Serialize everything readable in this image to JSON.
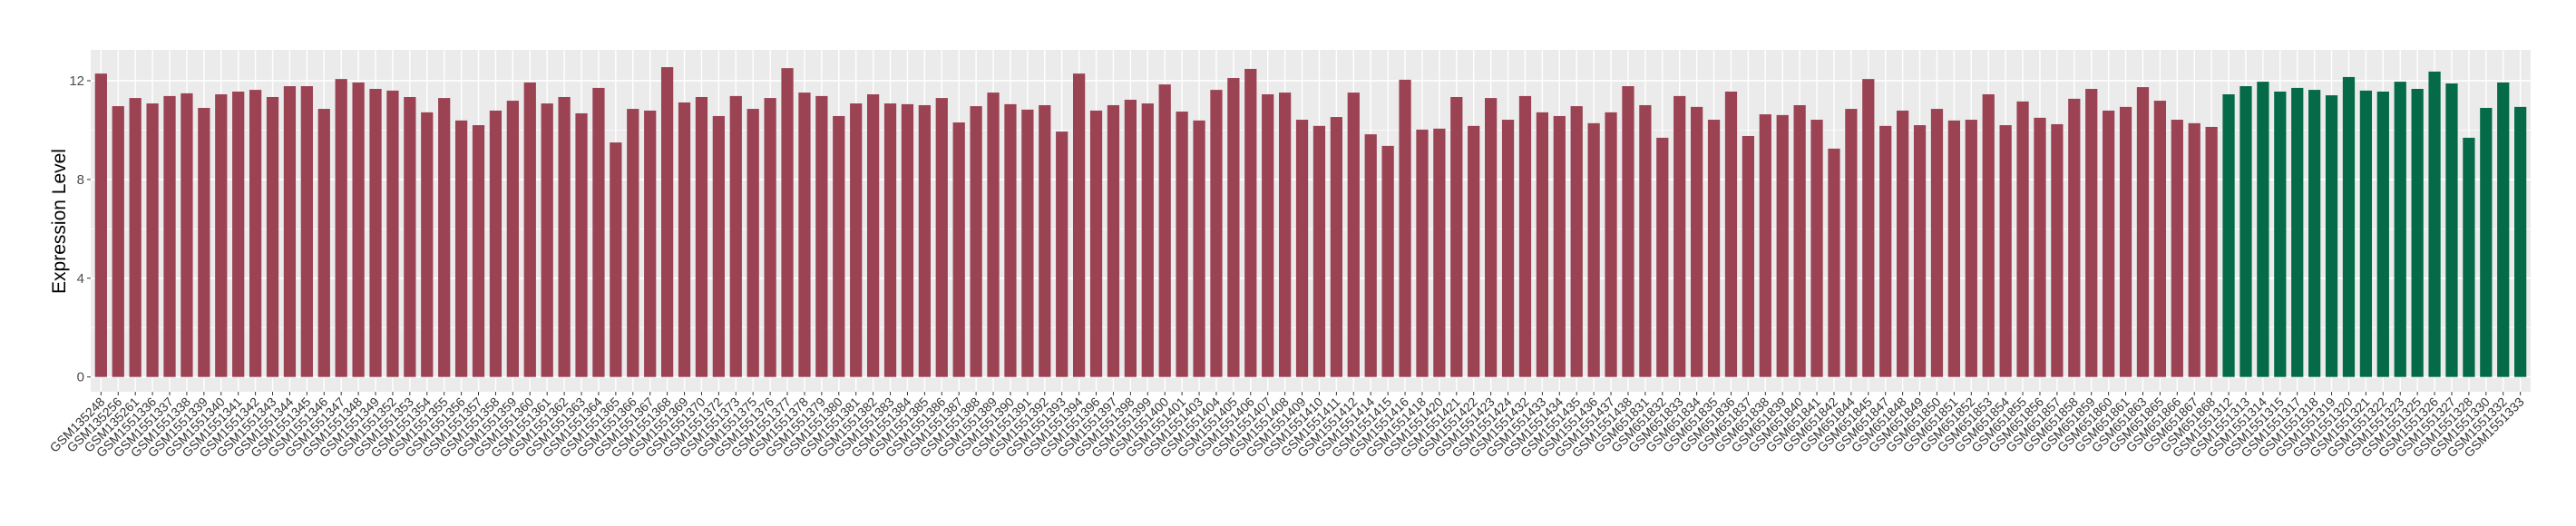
{
  "chart_data": {
    "type": "bar",
    "title": "",
    "xlabel": "",
    "ylabel": "Expression Level",
    "ylim": [
      -0.6,
      13.25
    ],
    "yticks": [
      0,
      4,
      8,
      12
    ],
    "grid": true,
    "panel_background": "#EBEBEB",
    "series": [
      {
        "color": "#9B4253",
        "categories": [
          "GSM135248",
          "GSM135256",
          "GSM135261",
          "GSM1551336",
          "GSM1551337",
          "GSM1551338",
          "GSM1551339",
          "GSM1551340",
          "GSM1551341",
          "GSM1551342",
          "GSM1551343",
          "GSM1551344",
          "GSM1551345",
          "GSM1551346",
          "GSM1551347",
          "GSM1551348",
          "GSM1551349",
          "GSM1551352",
          "GSM1551353",
          "GSM1551354",
          "GSM1551355",
          "GSM1551356",
          "GSM1551357",
          "GSM1551358",
          "GSM1551359",
          "GSM1551360",
          "GSM1551361",
          "GSM1551362",
          "GSM1551363",
          "GSM1551364",
          "GSM1551365",
          "GSM1551366",
          "GSM1551367",
          "GSM1551368",
          "GSM1551369",
          "GSM1551370",
          "GSM1551372",
          "GSM1551373",
          "GSM1551375",
          "GSM1551376",
          "GSM1551377",
          "GSM1551378",
          "GSM1551379",
          "GSM1551380",
          "GSM1551381",
          "GSM1551382",
          "GSM1551383",
          "GSM1551384",
          "GSM1551385",
          "GSM1551386",
          "GSM1551387",
          "GSM1551388",
          "GSM1551389",
          "GSM1551390",
          "GSM1551391",
          "GSM1551392",
          "GSM1551393",
          "GSM1551394",
          "GSM1551396",
          "GSM1551397",
          "GSM1551398",
          "GSM1551399",
          "GSM1551400",
          "GSM1551401",
          "GSM1551403",
          "GSM1551404",
          "GSM1551405",
          "GSM1551406",
          "GSM1551407",
          "GSM1551408",
          "GSM1551409",
          "GSM1551410",
          "GSM1551411",
          "GSM1551412",
          "GSM1551414",
          "GSM1551415",
          "GSM1551416",
          "GSM1551418",
          "GSM1551420",
          "GSM1551421",
          "GSM1551422",
          "GSM1551423",
          "GSM1551424",
          "GSM1551432",
          "GSM1551433",
          "GSM1551434",
          "GSM1551435",
          "GSM1551436",
          "GSM1551437",
          "GSM1551438",
          "GSM651831",
          "GSM651832",
          "GSM651833",
          "GSM651834",
          "GSM651835",
          "GSM651836",
          "GSM651837",
          "GSM651838",
          "GSM651839",
          "GSM651840",
          "GSM651841",
          "GSM651842",
          "GSM651844",
          "GSM651845",
          "GSM651847",
          "GSM651848",
          "GSM651849",
          "GSM651850",
          "GSM651851",
          "GSM651852",
          "GSM651853",
          "GSM651854",
          "GSM651855",
          "GSM651856",
          "GSM651857",
          "GSM651858",
          "GSM651859",
          "GSM651860",
          "GSM651861",
          "GSM651863",
          "GSM651865",
          "GSM651866",
          "GSM651867",
          "GSM651868"
        ],
        "values": [
          12.29,
          10.97,
          11.3,
          11.08,
          11.38,
          11.49,
          10.9,
          11.45,
          11.56,
          11.63,
          11.34,
          11.78,
          11.78,
          10.86,
          12.07,
          11.93,
          11.67,
          11.6,
          11.34,
          10.72,
          11.3,
          10.39,
          10.2,
          10.79,
          11.19,
          11.93,
          11.08,
          11.34,
          10.68,
          11.71,
          9.5,
          10.86,
          10.79,
          12.55,
          11.12,
          11.34,
          10.57,
          11.38,
          10.86,
          11.3,
          12.51,
          11.52,
          11.38,
          10.57,
          11.08,
          11.45,
          11.08,
          11.05,
          11.01,
          11.3,
          10.31,
          10.97,
          11.52,
          11.05,
          10.83,
          11.01,
          9.94,
          12.29,
          10.79,
          11.01,
          11.23,
          11.08,
          11.85,
          10.75,
          10.39,
          11.63,
          12.11,
          12.48,
          11.45,
          11.52,
          10.42,
          10.17,
          10.53,
          11.52,
          9.83,
          9.36,
          12.04,
          10.02,
          10.06,
          11.34,
          10.17,
          11.3,
          10.42,
          11.38,
          10.72,
          10.57,
          10.97,
          10.28,
          10.72,
          11.78,
          11.01,
          9.69,
          11.38,
          10.94,
          10.42,
          11.56,
          9.76,
          10.64,
          10.61,
          11.01,
          10.42,
          9.25,
          10.86,
          12.07,
          10.17,
          10.79,
          10.2,
          10.86,
          10.39,
          10.42,
          11.45,
          10.2,
          11.16,
          10.5,
          10.24,
          11.27,
          11.67,
          10.79,
          10.94,
          11.74,
          11.19,
          10.42,
          10.28,
          10.13
        ]
      },
      {
        "color": "#046A47",
        "categories": [
          "GSM1551312",
          "GSM1551313",
          "GSM1551314",
          "GSM1551315",
          "GSM1551317",
          "GSM1551318",
          "GSM1551319",
          "GSM1551320",
          "GSM1551321",
          "GSM1551322",
          "GSM1551323",
          "GSM1551325",
          "GSM1551326",
          "GSM1551327",
          "GSM1551328",
          "GSM1551330",
          "GSM1551332",
          "GSM1551333"
        ],
        "values": [
          11.45,
          11.78,
          11.96,
          11.56,
          11.71,
          11.63,
          11.41,
          12.15,
          11.6,
          11.56,
          11.96,
          11.67,
          12.37,
          11.89,
          9.69,
          10.9,
          11.93,
          10.94
        ]
      }
    ]
  }
}
